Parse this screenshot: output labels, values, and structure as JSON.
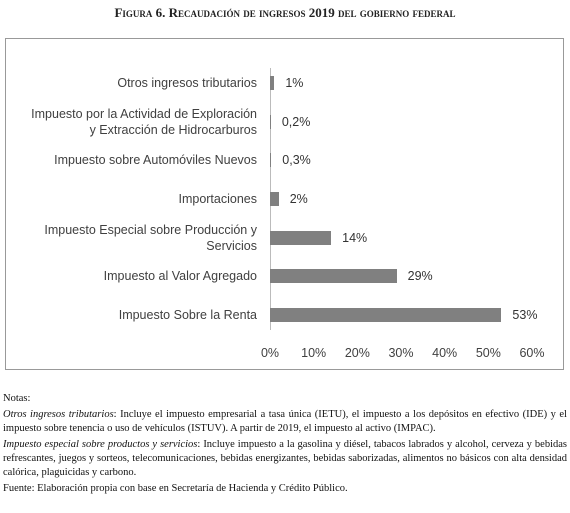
{
  "chart_data": {
    "type": "barh",
    "title": "Figura 6. Recaudación de ingresos 2019 del gobierno federal",
    "categories": [
      "Otros ingresos tributarios",
      "Impuesto por la Actividad de Exploración\ny Extracción de Hidrocarburos",
      "Impuesto sobre Automóviles Nuevos",
      "Importaciones",
      "Impuesto Especial sobre Producción y\nServicios",
      "Impuesto al Valor Agregado",
      "Impuesto Sobre la Renta"
    ],
    "values": [
      1,
      0.2,
      0.3,
      2,
      14,
      29,
      53
    ],
    "value_labels": [
      "1%",
      "0,2%",
      "0,3%",
      "2%",
      "14%",
      "29%",
      "53%"
    ],
    "color": "#808080",
    "xlim": [
      0,
      60
    ],
    "xticks": [
      {
        "value": 0,
        "label": "0%"
      },
      {
        "value": 10,
        "label": "10%"
      },
      {
        "value": 20,
        "label": "20%"
      },
      {
        "value": 30,
        "label": "30%"
      },
      {
        "value": 40,
        "label": "40%"
      },
      {
        "value": 50,
        "label": "50%"
      },
      {
        "value": 60,
        "label": "60%"
      }
    ]
  },
  "notes": {
    "heading": "Notas:",
    "items": [
      {
        "term": "Otros ingresos tributarios",
        "text": ": Incluye el impuesto empresarial a tasa única (IETU), el impuesto a los depósitos en efectivo (IDE) y el impuesto sobre tenencia o uso de vehículos (ISTUV). A partir de 2019, el impuesto al activo (IMPAC)."
      },
      {
        "term": "Impuesto especial sobre productos y servicios",
        "text": ": Incluye impuesto a la gasolina y diésel, tabacos labrados y alcohol, cerveza y bebidas refrescantes, juegos y sorteos, telecomunicaciones, bebidas energizantes, bebidas saborizadas, alimentos no básicos con alta densidad calórica, plaguicidas y carbono."
      }
    ],
    "source": "Fuente: Elaboración propia con base en Secretaría de Hacienda y Crédito Público."
  }
}
